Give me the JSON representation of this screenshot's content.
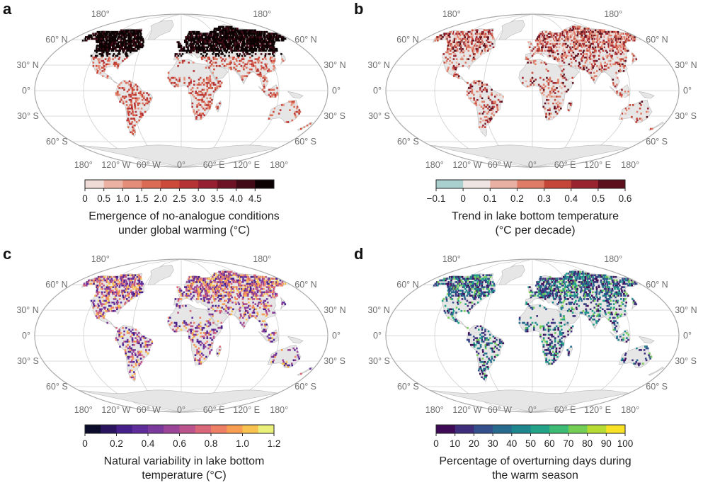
{
  "map_labels": {
    "lat": [
      "60° N",
      "30° N",
      "0°",
      "30° S",
      "60° S"
    ],
    "lon_bottom": [
      "180°",
      "120° W",
      "60° W",
      "0°",
      "60° E",
      "120° E",
      "180°"
    ],
    "lon_top": [
      "180°",
      "180°"
    ]
  },
  "colors": {
    "land": "#e6e6e6",
    "ocean": "#ffffff",
    "graticule": "#cfcfcf",
    "outline": "#a9a9a9"
  },
  "panels": [
    {
      "letter": "a",
      "title_lines": [
        "Emergence of no-analogue conditions",
        "under global warming (°C)"
      ],
      "ticks": [
        "0",
        "0.5",
        "1.0",
        "1.5",
        "2.0",
        "2.5",
        "3.0",
        "3.5",
        "4.0",
        "4.5"
      ],
      "colorbar": {
        "range": [
          0,
          5
        ],
        "segment_edges": [
          0,
          0.5,
          1.0,
          1.5,
          2.0,
          2.5,
          3.0,
          3.5,
          4.0,
          4.5,
          5.0
        ],
        "segment_colors": [
          "#f0dcd6",
          "#ebb2a4",
          "#e48e7a",
          "#dc6b56",
          "#cc4a3a",
          "#b53334",
          "#962032",
          "#6e1226",
          "#420a16",
          "#0c0204"
        ]
      },
      "pixel_palette": [
        "#0c0204",
        "#0c0204",
        "#0c0204",
        "#420a16",
        "#b53334",
        "#cc4a3a",
        "#dc6b56",
        "#e48e7a",
        "#962032"
      ]
    },
    {
      "letter": "b",
      "title_lines": [
        "Trend in lake bottom temperature",
        "(°C per decade)"
      ],
      "ticks": [
        "−0.1",
        "0",
        "0.1",
        "0.2",
        "0.3",
        "0.4",
        "0.5",
        "0.6"
      ],
      "colorbar": {
        "range": [
          -0.1,
          0.6
        ],
        "segment_edges": [
          -0.1,
          0,
          0.1,
          0.2,
          0.3,
          0.4,
          0.5,
          0.6
        ],
        "segment_colors": [
          "#a9d0cf",
          "#efe5e2",
          "#e8b0a2",
          "#de7c67",
          "#c4473a",
          "#9a2330",
          "#5c0f1c"
        ]
      },
      "pixel_palette": [
        "#de7c67",
        "#e8b0a2",
        "#c4473a",
        "#9a2330",
        "#de7c67",
        "#efe5e2",
        "#5c0f1c"
      ]
    },
    {
      "letter": "c",
      "title_lines": [
        "Natural variability in lake bottom",
        "temperature (°C)"
      ],
      "ticks": [
        "0",
        "0.2",
        "0.4",
        "0.6",
        "0.8",
        "1.0",
        "1.2"
      ],
      "colorbar": {
        "range": [
          0,
          1.2
        ],
        "segment_edges": [
          0,
          0.1,
          0.2,
          0.3,
          0.4,
          0.5,
          0.6,
          0.7,
          0.8,
          0.9,
          1.0,
          1.1,
          1.2
        ],
        "segment_colors": [
          "#0b0b2c",
          "#2a1460",
          "#46208a",
          "#5e2d9a",
          "#7a3a9c",
          "#9a4598",
          "#bb548c",
          "#d9677a",
          "#ec7f64",
          "#f69e52",
          "#f7c250",
          "#eaf07a"
        ]
      },
      "pixel_palette": [
        "#5e2d9a",
        "#7a3a9c",
        "#9a4598",
        "#bb548c",
        "#ec7f64",
        "#f69e52",
        "#46208a",
        "#d9677a",
        "#f7c250"
      ]
    },
    {
      "letter": "d",
      "title_lines": [
        "Percentage of overturning days during",
        "the warm season"
      ],
      "ticks": [
        "0",
        "10",
        "20",
        "30",
        "40",
        "50",
        "60",
        "70",
        "80",
        "90",
        "100"
      ],
      "colorbar": {
        "range": [
          0,
          100
        ],
        "segment_edges": [
          0,
          10,
          20,
          30,
          40,
          50,
          60,
          70,
          80,
          90,
          100
        ],
        "segment_colors": [
          "#3f0a55",
          "#3d2d7a",
          "#33508c",
          "#266a8e",
          "#1e878d",
          "#22a286",
          "#3dbb75",
          "#74cd55",
          "#b6dc33",
          "#f7e225"
        ]
      },
      "pixel_palette": [
        "#3d2d7a",
        "#3f0a55",
        "#33508c",
        "#266a8e",
        "#1e878d",
        "#3d2d7a",
        "#22a286",
        "#74cd55"
      ]
    }
  ]
}
